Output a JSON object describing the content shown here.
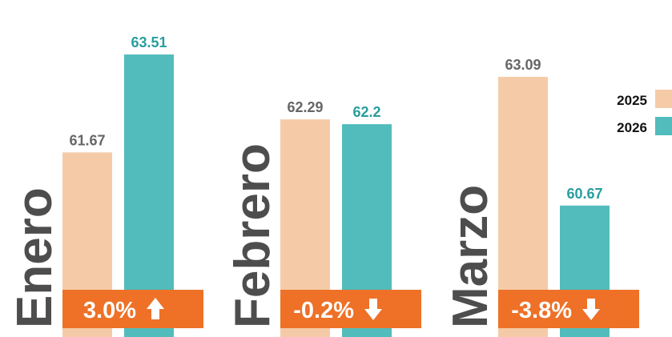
{
  "chart_data": {
    "type": "bar",
    "categories": [
      "Enero",
      "Febrero",
      "Marzo"
    ],
    "series": [
      {
        "name": "2025",
        "color": "#f5cba7",
        "label_color": "#666666",
        "values": [
          61.67,
          62.29,
          63.09
        ]
      },
      {
        "name": "2026",
        "color": "#52bcbc",
        "label_color": "#2a9d9d",
        "values": [
          63.51,
          62.2,
          60.67
        ]
      }
    ],
    "changes": [
      3.0,
      -0.2,
      -3.8
    ],
    "change_labels": [
      "3.0%",
      "-0.2%",
      "-3.8%"
    ],
    "change_color": "#ee7127",
    "ylim": [
      58.2,
      64.0
    ],
    "legend": "right"
  }
}
